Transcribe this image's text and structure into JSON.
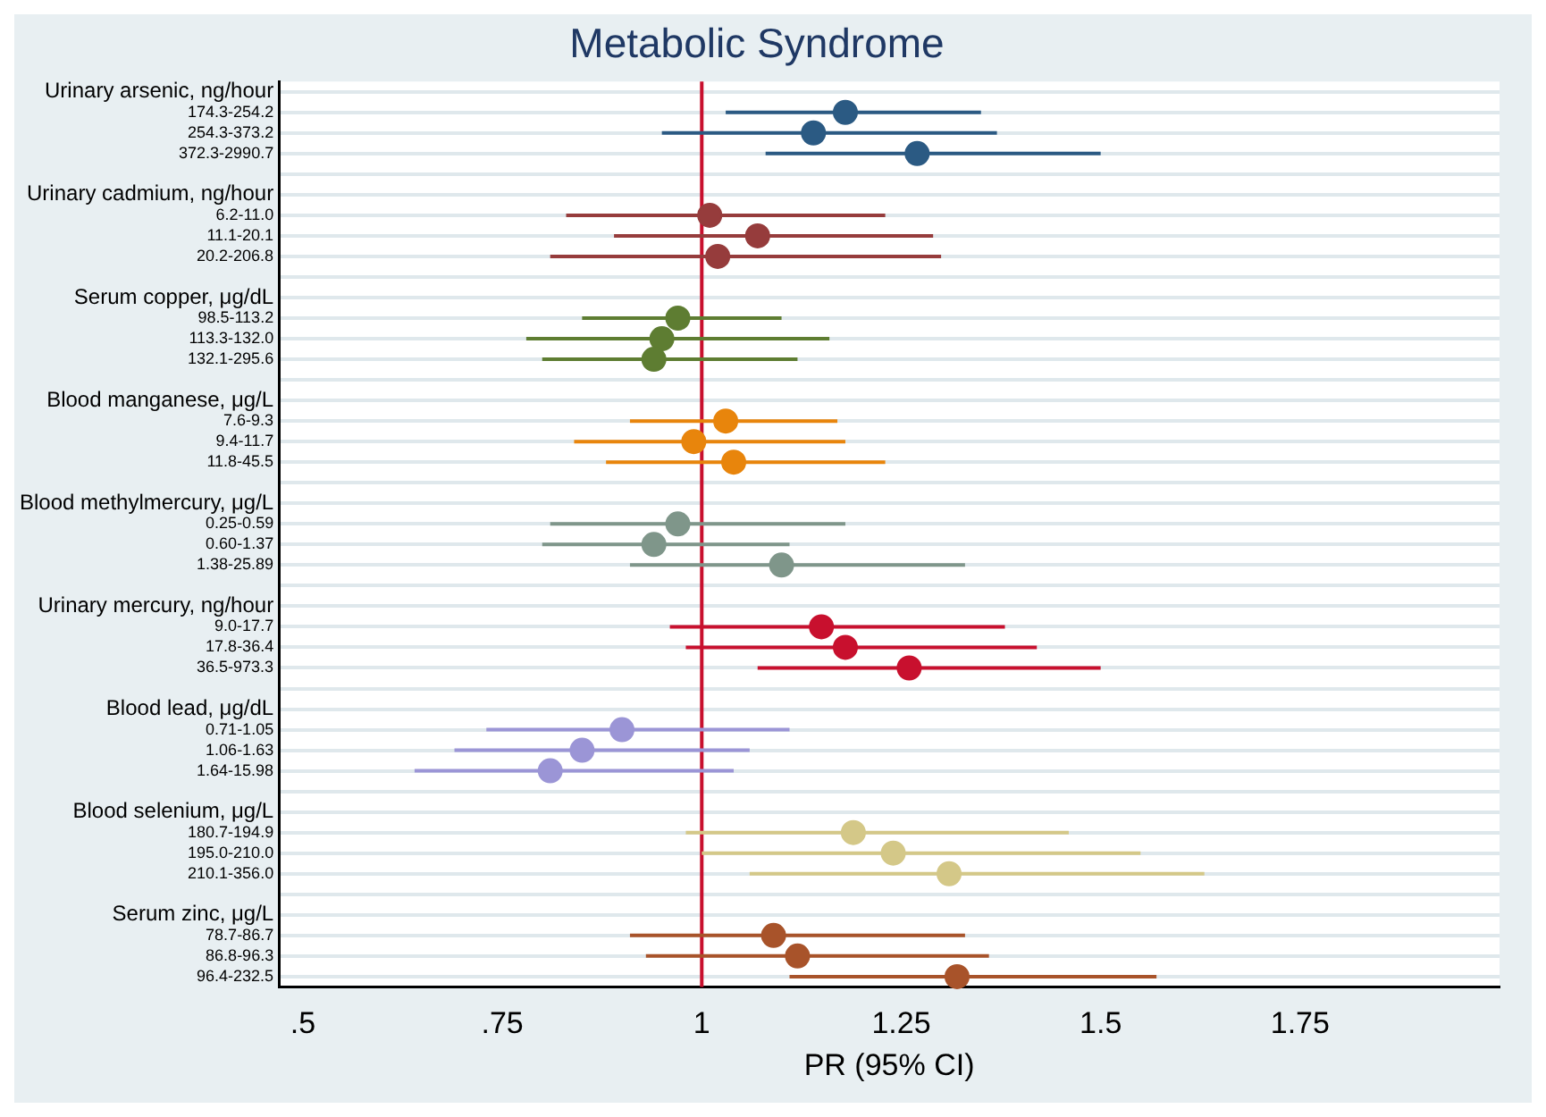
{
  "chart_data": {
    "type": "scatter",
    "orientation": "horizontal",
    "title": "Metabolic Syndrome",
    "xlabel": "PR (95% CI)",
    "categories": [
      "Urinary arsenic, ng/hour",
      "174.3-254.2",
      "254.3-373.2",
      "372.3-2990.7",
      null,
      "Urinary cadmium, ng/hour",
      "6.2-11.0",
      "11.1-20.1",
      "20.2-206.8",
      null,
      "Serum copper, μg/dL",
      "98.5-113.2",
      "113.3-132.0",
      "132.1-295.6",
      null,
      "Blood manganese, μg/L",
      "7.6-9.3",
      "9.4-11.7",
      "11.8-45.5",
      null,
      "Blood methylmercury, μg/L",
      "0.25-0.59",
      "0.60-1.37",
      "1.38-25.89",
      null,
      "Urinary mercury, ng/hour",
      "9.0-17.7",
      "17.8-36.4",
      "36.5-973.3",
      null,
      "Blood lead, μg/dL",
      "0.71-1.05",
      "1.06-1.63",
      "1.64-15.98",
      null,
      "Blood selenium, μg/L",
      "180.7-194.9",
      "195.0-210.0",
      "210.1-356.0",
      null,
      "Serum zinc, μg/L",
      "78.7-86.7",
      "86.8-96.3",
      "96.4-232.5"
    ],
    "values": [
      null,
      1.18,
      1.14,
      1.27,
      null,
      null,
      1.01,
      1.07,
      1.02,
      null,
      null,
      0.97,
      0.95,
      0.94,
      null,
      null,
      1.03,
      0.99,
      1.04,
      null,
      null,
      0.97,
      0.94,
      1.1,
      null,
      null,
      1.15,
      1.18,
      1.26,
      null,
      null,
      0.9,
      0.85,
      0.81,
      null,
      null,
      1.19,
      1.24,
      1.31,
      null,
      null,
      1.09,
      1.12,
      1.32
    ],
    "errors": [
      null,
      [
        1.03,
        1.35
      ],
      [
        0.95,
        1.37
      ],
      [
        1.08,
        1.5
      ],
      null,
      null,
      [
        0.83,
        1.23
      ],
      [
        0.89,
        1.29
      ],
      [
        0.81,
        1.3
      ],
      null,
      null,
      [
        0.85,
        1.1
      ],
      [
        0.78,
        1.16
      ],
      [
        0.8,
        1.12
      ],
      null,
      null,
      [
        0.91,
        1.17
      ],
      [
        0.84,
        1.18
      ],
      [
        0.88,
        1.23
      ],
      null,
      null,
      [
        0.81,
        1.18
      ],
      [
        0.8,
        1.11
      ],
      [
        0.91,
        1.33
      ],
      null,
      null,
      [
        0.96,
        1.38
      ],
      [
        0.98,
        1.42
      ],
      [
        1.07,
        1.5
      ],
      null,
      null,
      [
        0.73,
        1.11
      ],
      [
        0.69,
        1.06
      ],
      [
        0.64,
        1.04
      ],
      null,
      null,
      [
        0.98,
        1.46
      ],
      [
        1.0,
        1.55
      ],
      [
        1.06,
        1.63
      ],
      null,
      null,
      [
        0.91,
        1.33
      ],
      [
        0.93,
        1.36
      ],
      [
        1.11,
        1.57
      ]
    ],
    "colors": [
      null,
      "#2b5a83",
      "#2b5a83",
      "#2b5a83",
      null,
      null,
      "#963c3c",
      "#963c3c",
      "#963c3c",
      null,
      null,
      "#5e7d32",
      "#5e7d32",
      "#5e7d32",
      null,
      null,
      "#e8850c",
      "#e8850c",
      "#e8850c",
      null,
      null,
      "#7f968a",
      "#7f968a",
      "#7f968a",
      null,
      null,
      "#c8102e",
      "#c8102e",
      "#c8102e",
      null,
      null,
      "#9b95d6",
      "#9b95d6",
      "#9b95d6",
      null,
      null,
      "#d4c888",
      "#d4c888",
      "#d4c888",
      null,
      null,
      "#a8532a",
      "#a8532a",
      "#a8532a"
    ],
    "xlim": [
      0.47,
      2.0
    ],
    "xticks": [
      {
        "value": 0.5,
        "label": ".5"
      },
      {
        "value": 0.75,
        "label": ".75"
      },
      1,
      1.25,
      1.5,
      1.75
    ],
    "ref_lines": [
      {
        "axis": "x",
        "value": 1,
        "color": "#c8102e"
      }
    ],
    "grid": "y",
    "legend": false,
    "marker": "circle"
  }
}
